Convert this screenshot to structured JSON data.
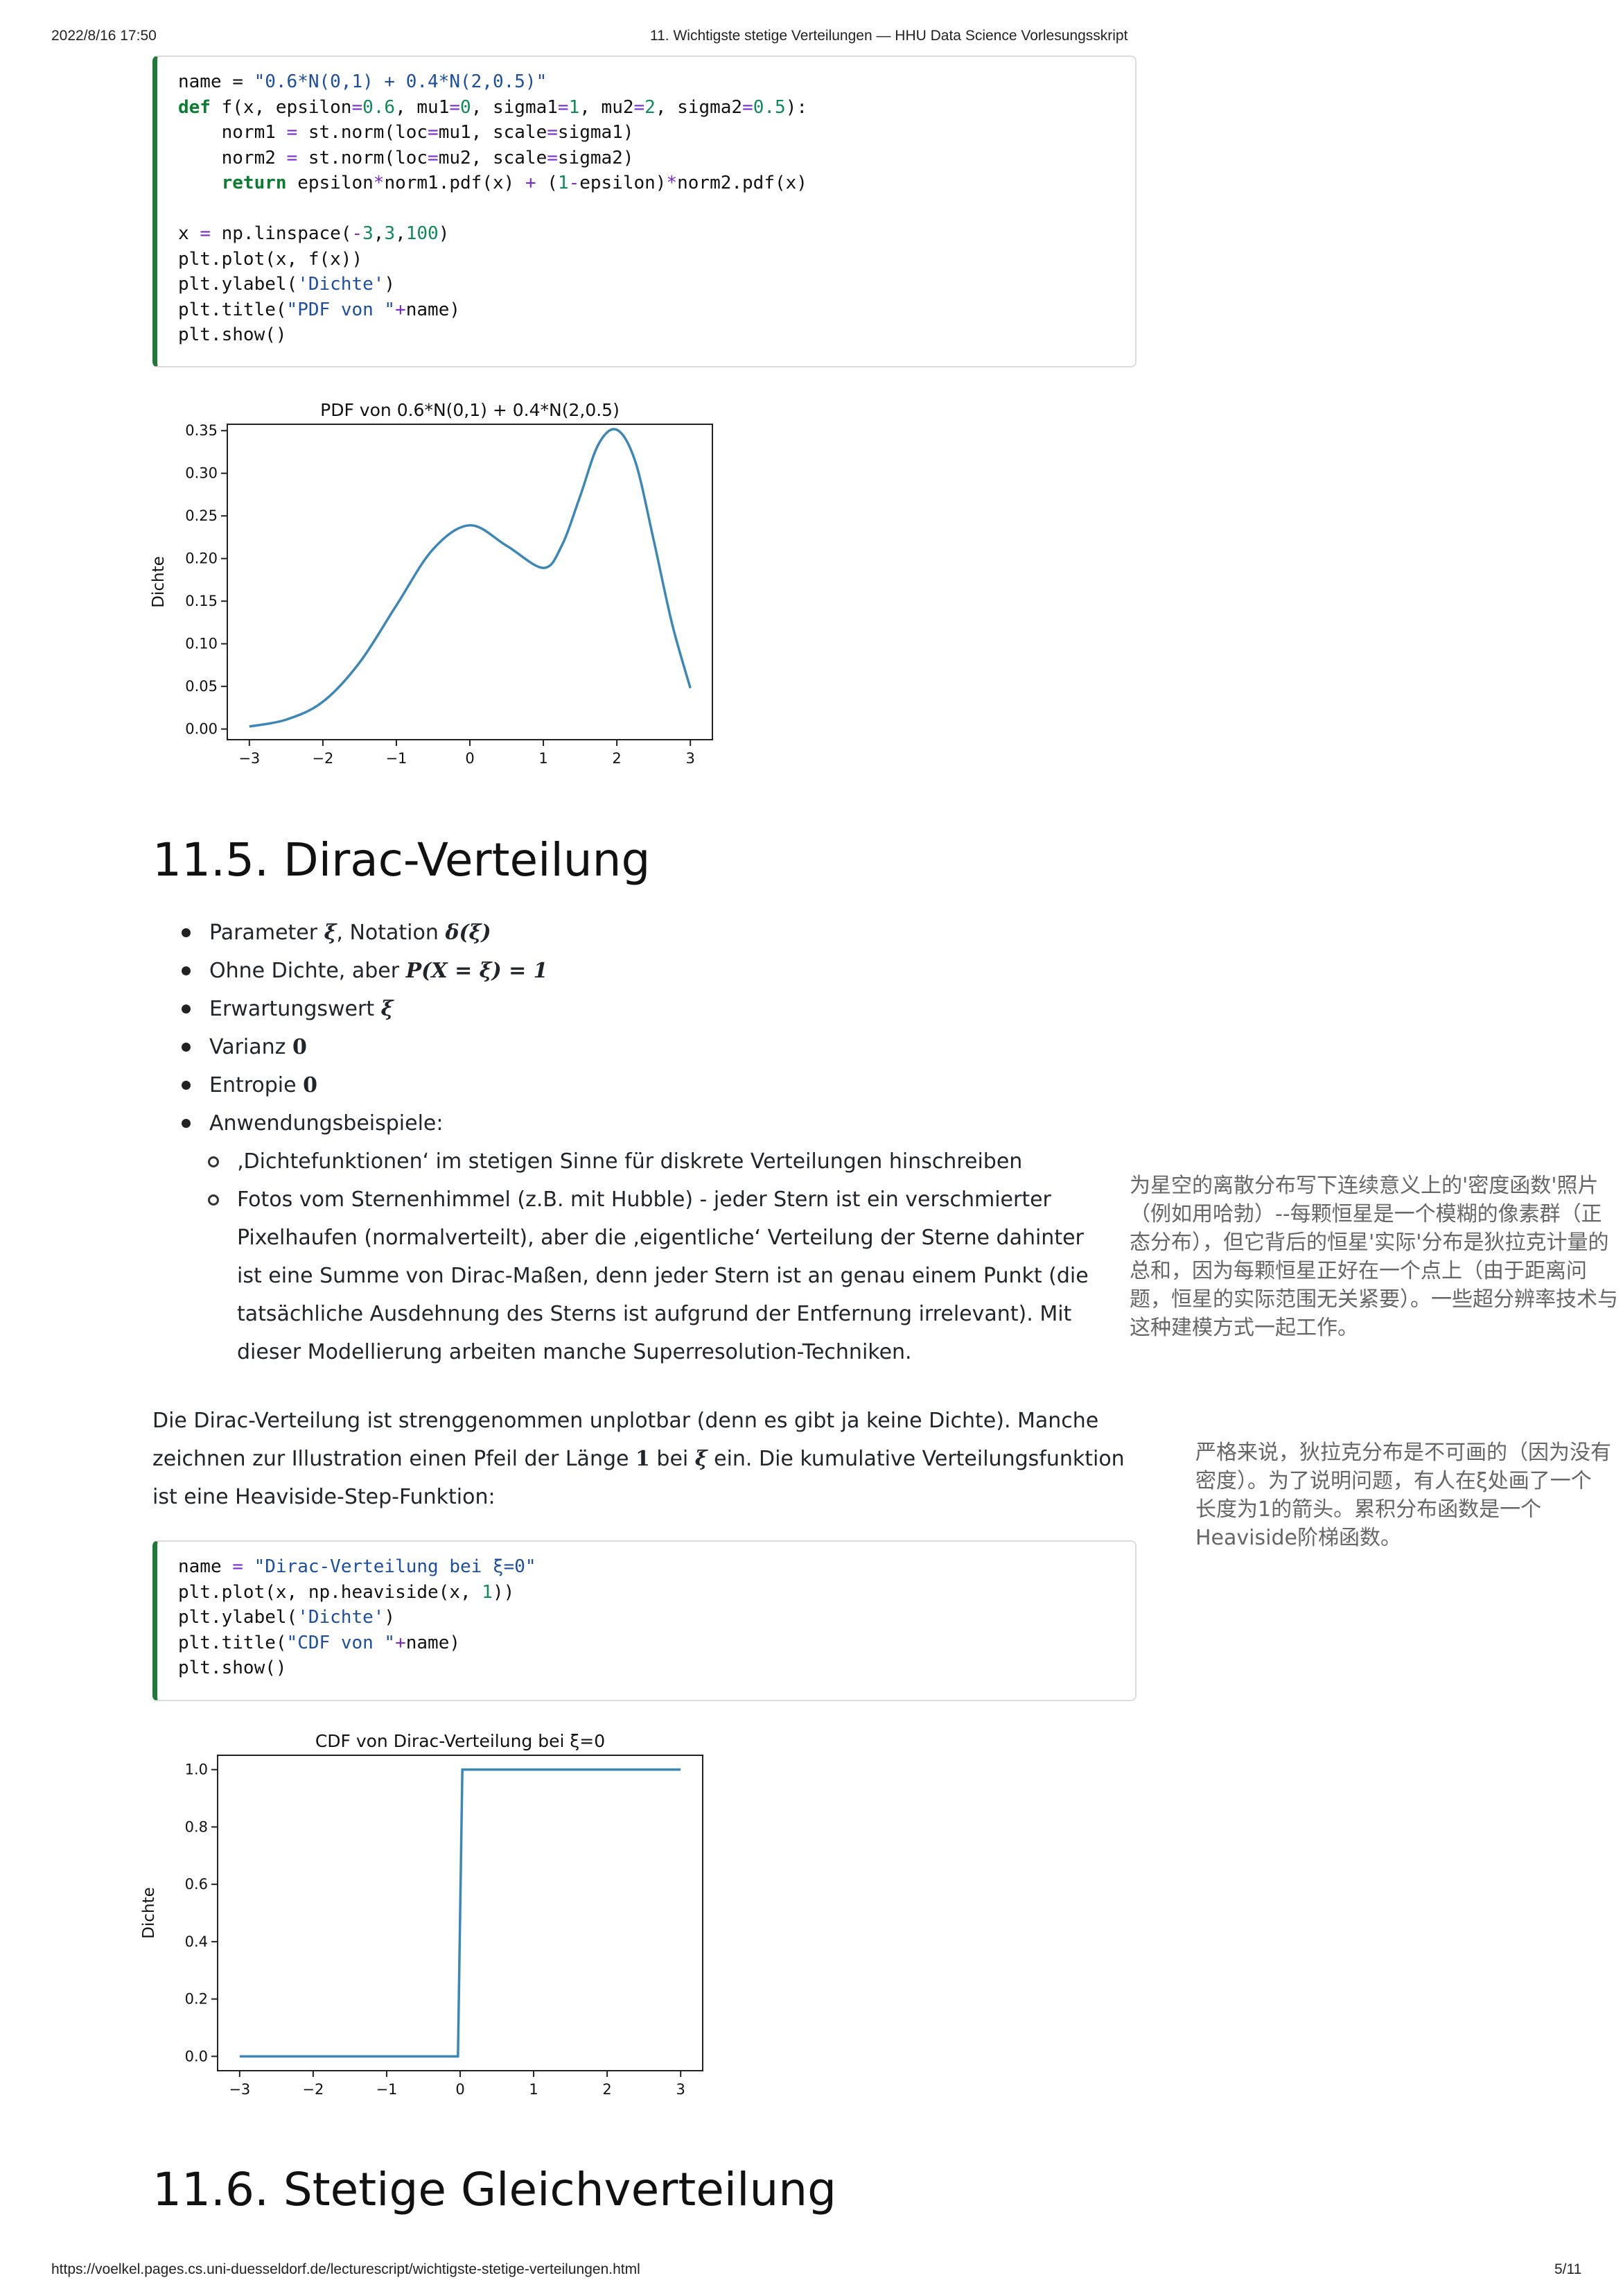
{
  "header": {
    "timestamp": "2022/8/16 17:50",
    "title": "11. Wichtigste stetige Verteilungen — HHU Data Science Vorlesungsskript"
  },
  "footer": {
    "url": "https://voelkel.pages.cs.uni-duesseldorf.de/lecturescript/wichtigste-stetige-verteilungen.html",
    "page": "5/11"
  },
  "code1": [
    "name = \"0.6*N(0,1) + 0.4*N(2,0.5)\"",
    "def f(x, epsilon=0.6, mu1=0, sigma1=1, mu2=2, sigma2=0.5):",
    "    norm1 = st.norm(loc=mu1, scale=sigma1)",
    "    norm2 = st.norm(loc=mu2, scale=sigma2)",
    "    return epsilon*norm1.pdf(x) + (1-epsilon)*norm2.pdf(x)",
    "",
    "x = np.linspace(-3,3,100)",
    "plt.plot(x, f(x))",
    "plt.ylabel('Dichte')",
    "plt.title(\"PDF von \"+name)",
    "plt.show()"
  ],
  "chart_data": [
    {
      "type": "line",
      "title": "PDF von 0.6*N(0,1) + 0.4*N(2,0.5)",
      "xlabel": "",
      "ylabel": "Dichte",
      "xlim": [
        -3.3,
        3.3
      ],
      "ylim": [
        -0.0125,
        0.3575
      ],
      "xticks": [
        "−3",
        "−2",
        "−1",
        "0",
        "1",
        "2",
        "3"
      ],
      "yticks": [
        "0.00",
        "0.05",
        "0.10",
        "0.15",
        "0.20",
        "0.25",
        "0.30",
        "0.35"
      ],
      "grid": false,
      "color": "#3b87b8",
      "x": [
        -3,
        -2.5,
        -2,
        -1.5,
        -1,
        -0.5,
        0,
        0.5,
        1,
        1.25,
        1.5,
        1.75,
        2,
        2.25,
        2.5,
        2.75,
        3
      ],
      "y": [
        0.003,
        0.011,
        0.032,
        0.078,
        0.145,
        0.211,
        0.239,
        0.215,
        0.189,
        0.215,
        0.273,
        0.334,
        0.351,
        0.314,
        0.222,
        0.124,
        0.048
      ]
    },
    {
      "type": "line",
      "title": "CDF von Dirac-Verteilung bei ξ=0",
      "xlabel": "",
      "ylabel": "Dichte",
      "xlim": [
        -3.3,
        3.3
      ],
      "ylim": [
        -0.05,
        1.05
      ],
      "xticks": [
        "−3",
        "−2",
        "−1",
        "0",
        "1",
        "2",
        "3"
      ],
      "yticks": [
        "0.0",
        "0.2",
        "0.4",
        "0.6",
        "0.8",
        "1.0"
      ],
      "grid": false,
      "color": "#3b87b8",
      "x": [
        -3,
        -0.03,
        0.03,
        3
      ],
      "y": [
        0,
        0,
        1,
        1
      ]
    }
  ],
  "section1": {
    "title": "11.5. Dirac-Verteilung",
    "bullets": [
      {
        "prefix": "Parameter ",
        "math": "ξ",
        "mid": ", Notation ",
        "math2": "δ(ξ)"
      },
      {
        "prefix": "Ohne Dichte, aber ",
        "math": "P(X = ξ) = 1"
      },
      {
        "prefix": "Erwartungswert ",
        "math": "ξ"
      },
      {
        "prefix": "Varianz ",
        "num": "0"
      },
      {
        "prefix": "Entropie ",
        "num": "0"
      },
      {
        "prefix": "Anwendungsbeispiele:"
      }
    ],
    "sub": [
      "‚Dichtefunktionen‘ im stetigen Sinne für diskrete Verteilungen hinschreiben",
      "Fotos vom Sternenhimmel (z.B. mit Hubble) - jeder Stern ist ein verschmierter Pixelhaufen (normalverteilt), aber die ‚eigentliche‘ Verteilung der Sterne dahinter ist eine Summe von Dirac-Maßen, denn jeder Stern ist an genau einem Punkt (die tatsächliche Ausdehnung des Sterns ist aufgrund der Entfernung irrelevant). Mit dieser Modellierung arbeiten manche Superresolution-Techniken."
    ],
    "para_a": "Die Dirac-Verteilung ist strenggenommen unplotbar (denn es gibt ja keine Dichte). Manche zeichnen zur Illustration einen Pfeil der Länge ",
    "para_one": "1",
    "para_b": " bei ",
    "para_xi": "ξ",
    "para_c": " ein. Die kumulative Verteilungsfunktion ist eine Heaviside-Step-Funktion:"
  },
  "notes": {
    "note1": "为星空的离散分布写下连续意义上的'密度函数'照片（例如用哈勃）--每颗恒星是一个模糊的像素群（正态分布），但它背后的恒星'实际'分布是狄拉克计量的总和，因为每颗恒星正好在一个点上（由于距离问题，恒星的实际范围无关紧要）。一些超分辨率技术与这种建模方式一起工作。",
    "note2": "严格来说，狄拉克分布是不可画的（因为没有密度）。为了说明问题，有人在ξ处画了一个长度为1的箭头。累积分布函数是一个Heaviside阶梯函数。"
  },
  "code2": [
    "name = \"Dirac-Verteilung bei ξ=0\"",
    "plt.plot(x, np.heaviside(x, 1))",
    "plt.ylabel('Dichte')",
    "plt.title(\"CDF von \"+name)",
    "plt.show()"
  ],
  "section2": {
    "title": "11.6. Stetige Gleichverteilung"
  }
}
